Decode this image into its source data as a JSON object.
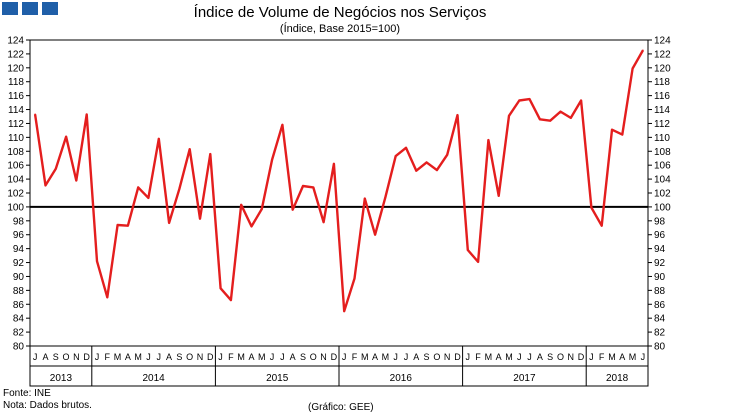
{
  "title": "Índice de Volume de Negócios nos Serviços",
  "subtitle": "(Índice, Base 2015=100)",
  "footer": {
    "source": "Fonte: INE",
    "note": "Nota: Dados brutos.",
    "credit": "(Gráfico: GEE)"
  },
  "colors": {
    "series": "#e41e1e",
    "reference": "#000000",
    "logo": "#1f5fa8"
  },
  "chart_data": {
    "type": "line",
    "title": "Índice de Volume de Negócios nos Serviços",
    "ylabel": "Índice, Base 2015=100",
    "ylim": [
      80,
      124
    ],
    "yticks": [
      80,
      82,
      84,
      86,
      88,
      90,
      92,
      94,
      96,
      98,
      100,
      102,
      104,
      106,
      108,
      110,
      112,
      114,
      116,
      118,
      120,
      122,
      124
    ],
    "reference_line": 100,
    "month_labels": [
      "J",
      "A",
      "S",
      "O",
      "N",
      "D",
      "J",
      "F",
      "M",
      "A",
      "M",
      "J",
      "J",
      "A",
      "S",
      "O",
      "N",
      "D",
      "J",
      "F",
      "M",
      "A",
      "M",
      "J",
      "J",
      "A",
      "S",
      "O",
      "N",
      "D",
      "J",
      "F",
      "M",
      "A",
      "M",
      "J",
      "J",
      "A",
      "S",
      "O",
      "N",
      "D",
      "J",
      "F",
      "M",
      "A",
      "M",
      "J",
      "J",
      "A",
      "S",
      "O",
      "N",
      "D",
      "J",
      "F",
      "M",
      "A",
      "M",
      "J"
    ],
    "years": [
      {
        "label": "2013",
        "start": 0,
        "count": 6
      },
      {
        "label": "2014",
        "start": 6,
        "count": 12
      },
      {
        "label": "2015",
        "start": 18,
        "count": 12
      },
      {
        "label": "2016",
        "start": 30,
        "count": 12
      },
      {
        "label": "2017",
        "start": 42,
        "count": 12
      },
      {
        "label": "2018",
        "start": 54,
        "count": 6
      }
    ],
    "series": [
      {
        "name": "Índice de Volume de Negócios nos Serviços",
        "values": [
          113.3,
          103.1,
          105.5,
          110.1,
          103.8,
          113.3,
          92.2,
          87.0,
          97.4,
          97.3,
          102.8,
          101.3,
          109.8,
          97.7,
          102.6,
          108.3,
          98.3,
          107.6,
          88.3,
          86.6,
          100.3,
          97.2,
          99.7,
          106.8,
          111.8,
          99.6,
          103.0,
          102.8,
          97.8,
          106.2,
          85.0,
          89.7,
          101.2,
          96.0,
          101.4,
          107.3,
          108.5,
          105.2,
          106.4,
          105.3,
          107.5,
          113.2,
          93.8,
          92.1,
          109.6,
          101.6,
          113.1,
          115.3,
          115.5,
          112.6,
          112.4,
          113.7,
          112.8,
          115.3,
          99.9,
          97.3,
          111.1,
          110.4,
          119.9,
          122.5
        ]
      }
    ]
  }
}
